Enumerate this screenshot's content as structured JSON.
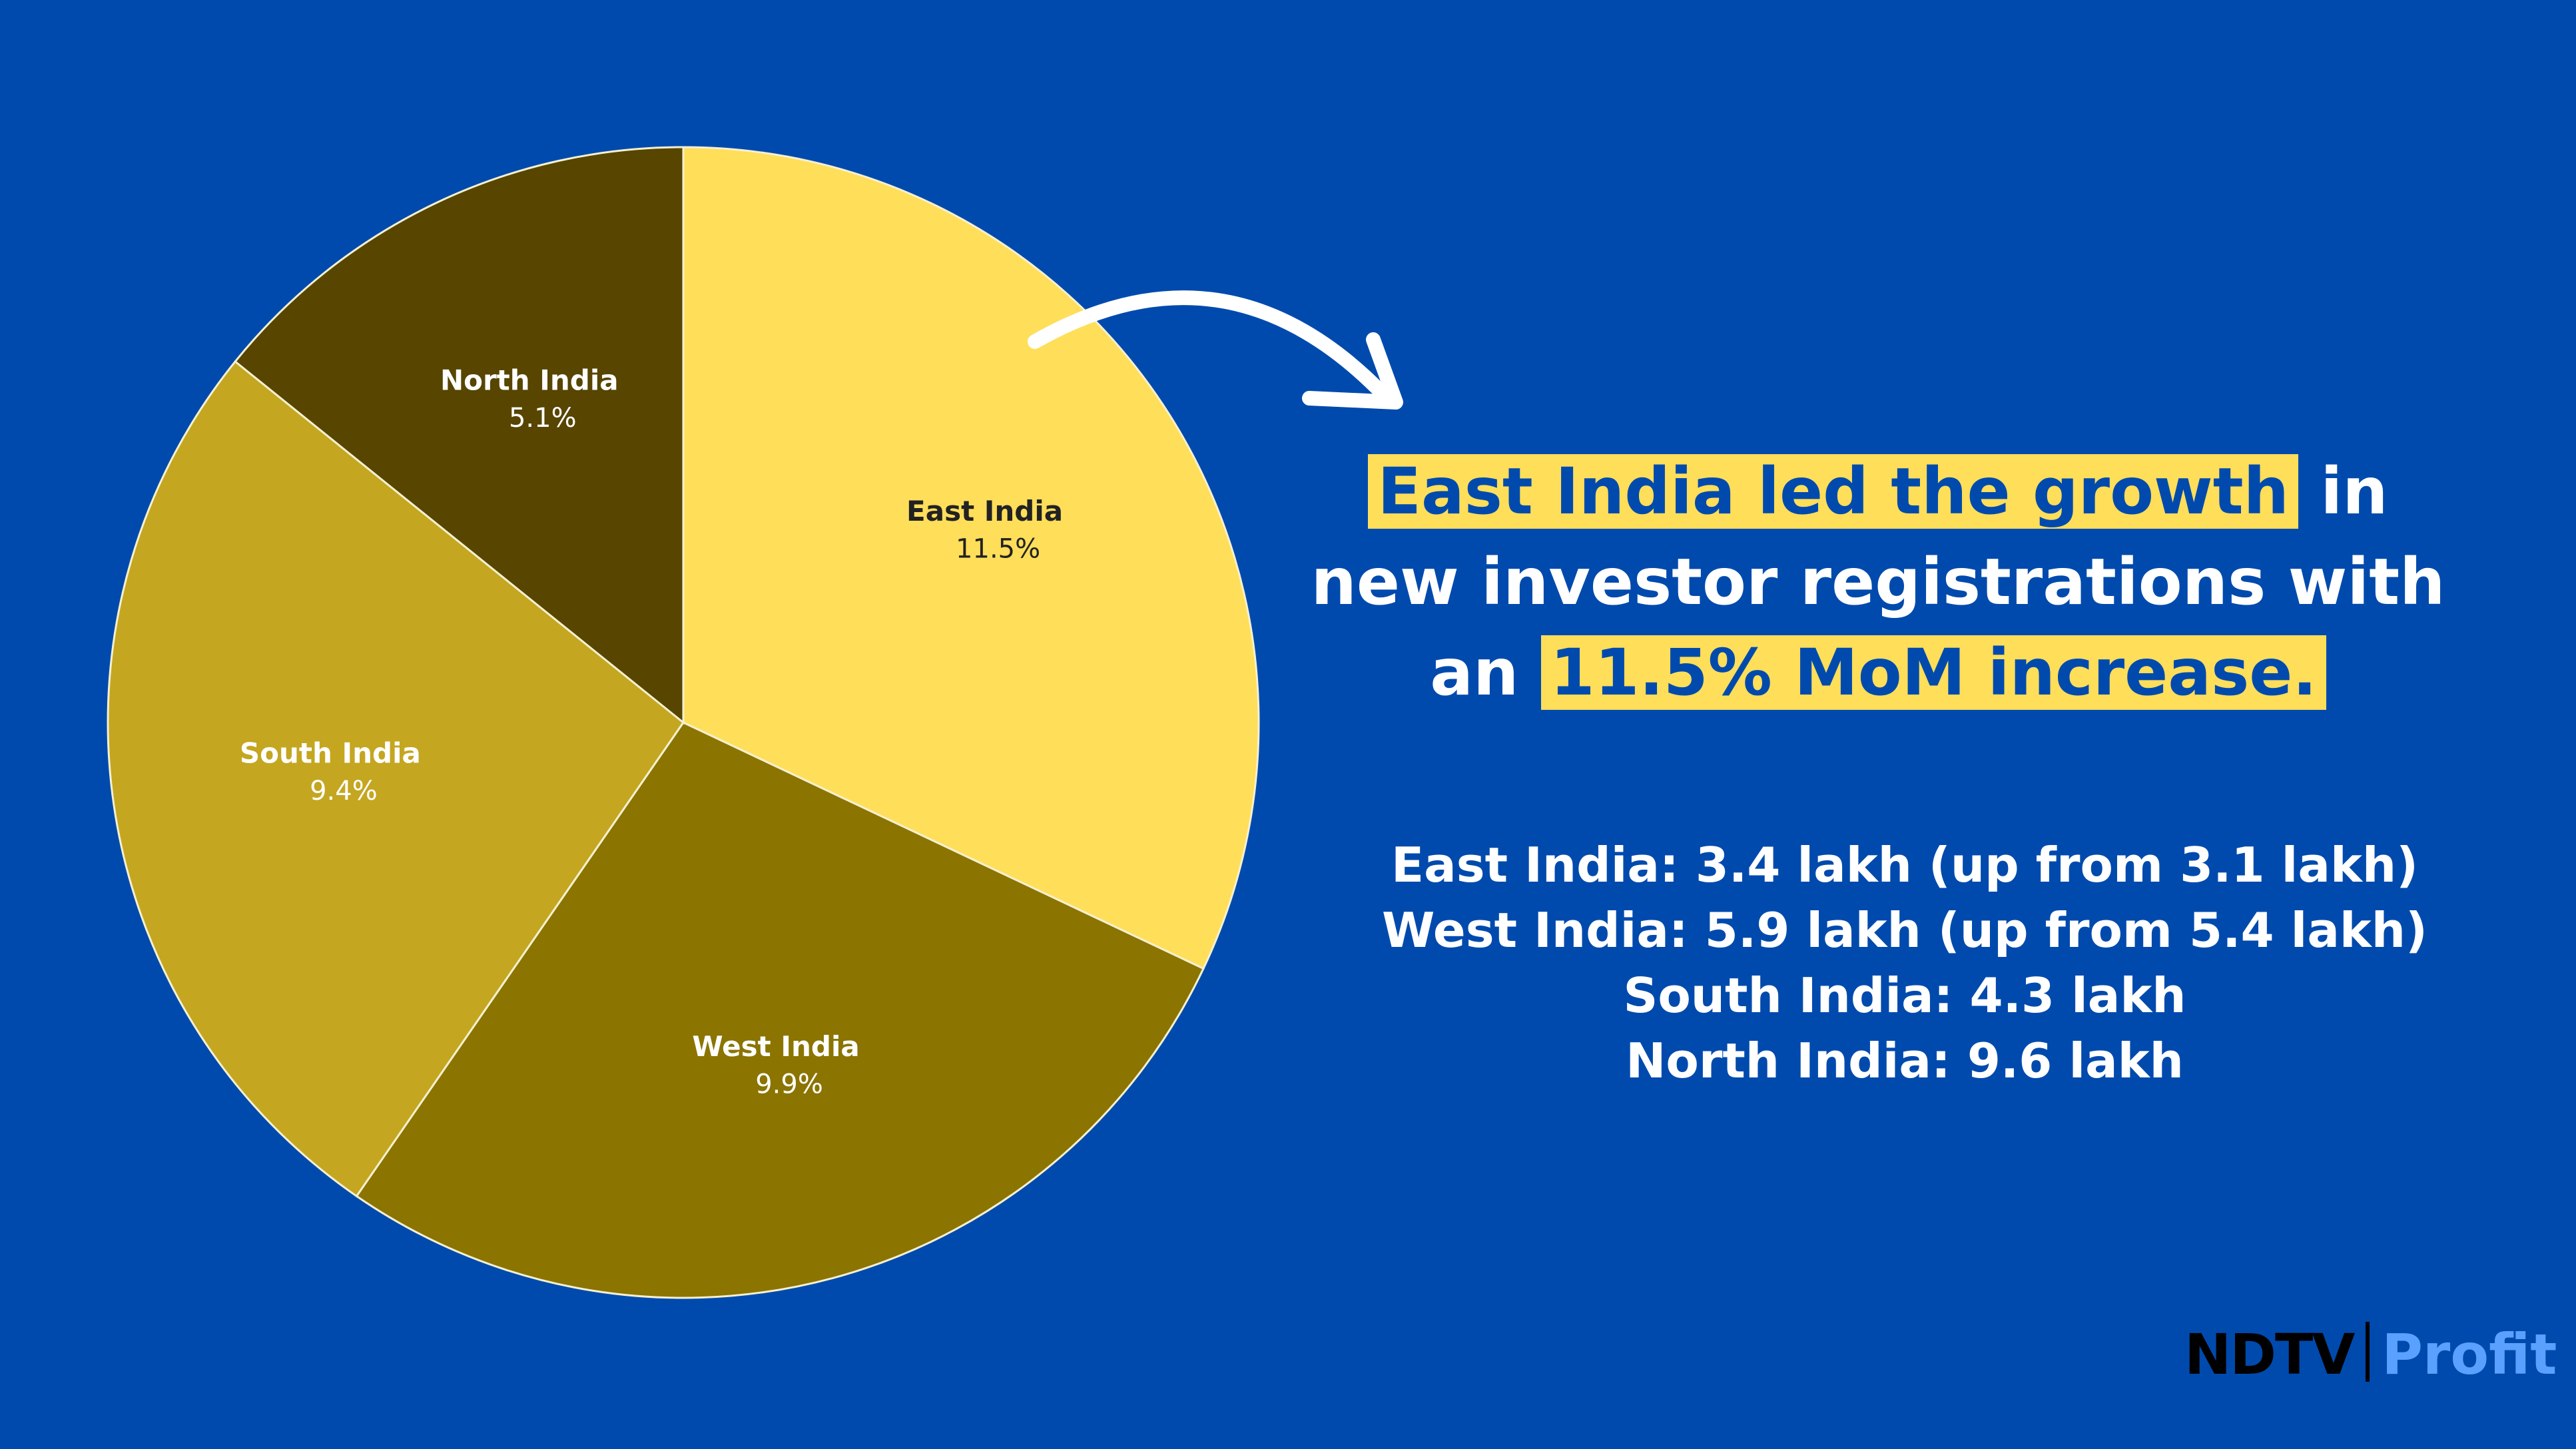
{
  "chart_data": {
    "type": "pie",
    "categories": [
      "East India",
      "West India",
      "South India",
      "North India"
    ],
    "values": [
      11.5,
      9.9,
      9.4,
      5.1
    ],
    "value_labels": [
      "11.5%",
      "9.9%",
      "9.4%",
      "5.1%"
    ],
    "colors": [
      "#ffde5a",
      "#8b7400",
      "#c4a620",
      "#574500"
    ]
  },
  "headline": {
    "highlight_1": "East India led the growth",
    "middle": "in new investor registrations with an",
    "highlight_2": "11.5% MoM increase."
  },
  "details": [
    "East India: 3.4 lakh (up from 3.1 lakh)",
    "West India: 5.9 lakh (up from 5.4 lakh)",
    "South India: 4.3 lakh",
    "North India: 9.6 lakh"
  ],
  "logo": {
    "brand": "NDTV",
    "product": "Profit"
  }
}
